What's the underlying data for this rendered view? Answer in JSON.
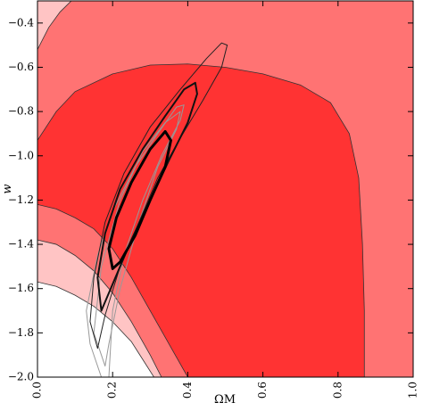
{
  "chart_data": {
    "type": "contour",
    "x_label": "ΩM",
    "y_label": "w",
    "xlim": [
      0,
      1
    ],
    "ylim": [
      -2.0,
      -0.3
    ],
    "xticks": [
      {
        "value": 0,
        "label": "0.0"
      },
      {
        "value": 0.2,
        "label": "0.2"
      },
      {
        "value": 0.4,
        "label": "0.4"
      },
      {
        "value": 0.6,
        "label": "0.6"
      },
      {
        "value": 0.8,
        "label": "0.8"
      },
      {
        "value": 1,
        "label": "1.0"
      }
    ],
    "yticks": [
      {
        "value": -2.0,
        "label": "−2.0"
      },
      {
        "value": -1.8,
        "label": "−1.8"
      },
      {
        "value": -1.6,
        "label": "−1.6"
      },
      {
        "value": -1.4,
        "label": "−1.4"
      },
      {
        "value": -1.2,
        "label": "−1.2"
      },
      {
        "value": -1.0,
        "label": "−1.0"
      },
      {
        "value": -0.8,
        "label": "−0.8"
      },
      {
        "value": -0.6,
        "label": "−0.6"
      },
      {
        "value": -0.4,
        "label": "−0.4"
      }
    ],
    "background_color": "#ff7373",
    "edge_color": "#333333",
    "filled": [
      {
        "color": "#ff3333",
        "x": [
          0,
          0.05,
          0.1,
          0.2,
          0.3,
          0.4,
          0.5,
          0.6,
          0.7,
          0.78,
          0.83,
          0.855,
          0.865,
          0.87,
          0.87,
          0.4,
          0.35,
          0.3,
          0.25,
          0.2,
          0.15,
          0.1,
          0.05,
          0
        ],
        "y": [
          -0.93,
          -0.8,
          -0.71,
          -0.63,
          -0.59,
          -0.585,
          -0.6,
          -0.63,
          -0.68,
          -0.76,
          -0.9,
          -1.1,
          -1.4,
          -1.7,
          -2.0,
          -2.0,
          -1.85,
          -1.7,
          -1.55,
          -1.42,
          -1.33,
          -1.28,
          -1.24,
          -1.22
        ]
      },
      {
        "color": "#ffc4c4",
        "x": [
          0,
          0.05,
          0.1,
          0.15,
          0.2,
          0.25,
          0.3,
          0.33,
          0
        ],
        "y": [
          -1.38,
          -1.4,
          -1.45,
          -1.52,
          -1.62,
          -1.75,
          -1.9,
          -2.0,
          -2.0
        ]
      },
      {
        "color": "#ffffff",
        "x": [
          0,
          0.05,
          0.1,
          0.15,
          0.2,
          0.25,
          0.28,
          0.31,
          0
        ],
        "y": [
          -1.57,
          -1.59,
          -1.63,
          -1.68,
          -1.75,
          -1.84,
          -1.92,
          -2.0,
          -2.0
        ]
      },
      {
        "color": "#ffc4c4",
        "x": [
          0,
          0.03,
          0.06,
          0.09,
          0
        ],
        "y": [
          -0.52,
          -0.42,
          -0.35,
          -0.3,
          -0.3
        ]
      }
    ],
    "lines": [
      {
        "color": "#999999",
        "width": 1,
        "x": [
          0.17,
          0.14,
          0.13,
          0.16,
          0.2,
          0.26,
          0.32,
          0.37,
          0.39,
          0.38,
          0.33,
          0.28,
          0.23,
          0.2,
          0.19
        ],
        "y": [
          -2.0,
          -1.85,
          -1.7,
          -1.45,
          -1.25,
          -1.05,
          -0.9,
          -0.78,
          -0.77,
          -0.84,
          -1.0,
          -1.2,
          -1.45,
          -1.7,
          -2.0
        ]
      },
      {
        "color": "#999999",
        "width": 1,
        "x": [
          0.18,
          0.15,
          0.17,
          0.22,
          0.28,
          0.34,
          0.38,
          0.37,
          0.32,
          0.27,
          0.22,
          0.19,
          0.18
        ],
        "y": [
          -1.95,
          -1.8,
          -1.5,
          -1.2,
          -0.98,
          -0.85,
          -0.8,
          -0.88,
          -1.05,
          -1.3,
          -1.6,
          -1.85,
          -1.95
        ]
      },
      {
        "color": "#222222",
        "width": 1,
        "x": [
          0.16,
          0.14,
          0.15,
          0.18,
          0.23,
          0.3,
          0.38,
          0.45,
          0.49,
          0.505,
          0.49,
          0.44,
          0.38,
          0.32,
          0.27,
          0.22,
          0.18,
          0.16
        ],
        "y": [
          -1.87,
          -1.75,
          -1.55,
          -1.3,
          -1.08,
          -0.87,
          -0.7,
          -0.56,
          -0.49,
          -0.5,
          -0.6,
          -0.75,
          -0.92,
          -1.1,
          -1.3,
          -1.5,
          -1.72,
          -1.87
        ]
      },
      {
        "color": "#111111",
        "width": 2,
        "x": [
          0.17,
          0.16,
          0.18,
          0.22,
          0.28,
          0.34,
          0.39,
          0.42,
          0.425,
          0.4,
          0.35,
          0.3,
          0.25,
          0.2,
          0.17
        ],
        "y": [
          -1.7,
          -1.55,
          -1.35,
          -1.15,
          -0.97,
          -0.82,
          -0.7,
          -0.67,
          -0.72,
          -0.85,
          -1.02,
          -1.2,
          -1.38,
          -1.58,
          -1.7
        ]
      },
      {
        "color": "#000000",
        "width": 3,
        "x": [
          0.2,
          0.19,
          0.21,
          0.25,
          0.3,
          0.34,
          0.355,
          0.34,
          0.3,
          0.26,
          0.22,
          0.2
        ],
        "y": [
          -1.51,
          -1.42,
          -1.28,
          -1.12,
          -0.97,
          -0.89,
          -0.93,
          -1.05,
          -1.2,
          -1.36,
          -1.48,
          -1.51
        ]
      }
    ]
  }
}
